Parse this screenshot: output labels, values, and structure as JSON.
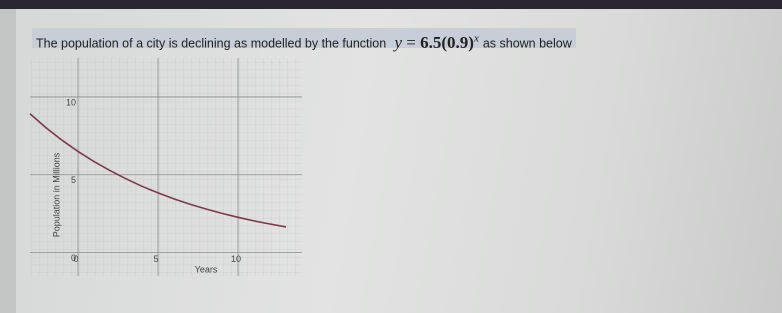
{
  "chart_data": {
    "type": "line",
    "title": "The population of a city is declining as modelled by the function",
    "formula": {
      "lhs": "y",
      "eq": "=",
      "base": "6.5(0.9)",
      "exponent": "x"
    },
    "title_suffix": "as shown below",
    "x_label": "Years",
    "y_label": "Population in Millions",
    "x": [
      -3,
      -2,
      -1,
      0,
      1,
      2,
      3,
      4,
      5,
      6,
      7,
      8,
      9,
      10,
      11,
      12,
      13
    ],
    "series": [
      {
        "color": "#7a3a4a",
        "values": [
          8.92,
          8.02,
          7.22,
          6.5,
          5.85,
          5.27,
          4.74,
          4.26,
          3.84,
          3.45,
          3.11,
          2.8,
          2.52,
          2.27,
          2.04,
          1.84,
          1.65
        ]
      }
    ],
    "xlim": [
      -3,
      14
    ],
    "ylim": [
      -1.5,
      12.5
    ],
    "xticks": [
      0,
      5,
      10
    ],
    "yticks": [
      0,
      5,
      10
    ],
    "grid": true
  }
}
